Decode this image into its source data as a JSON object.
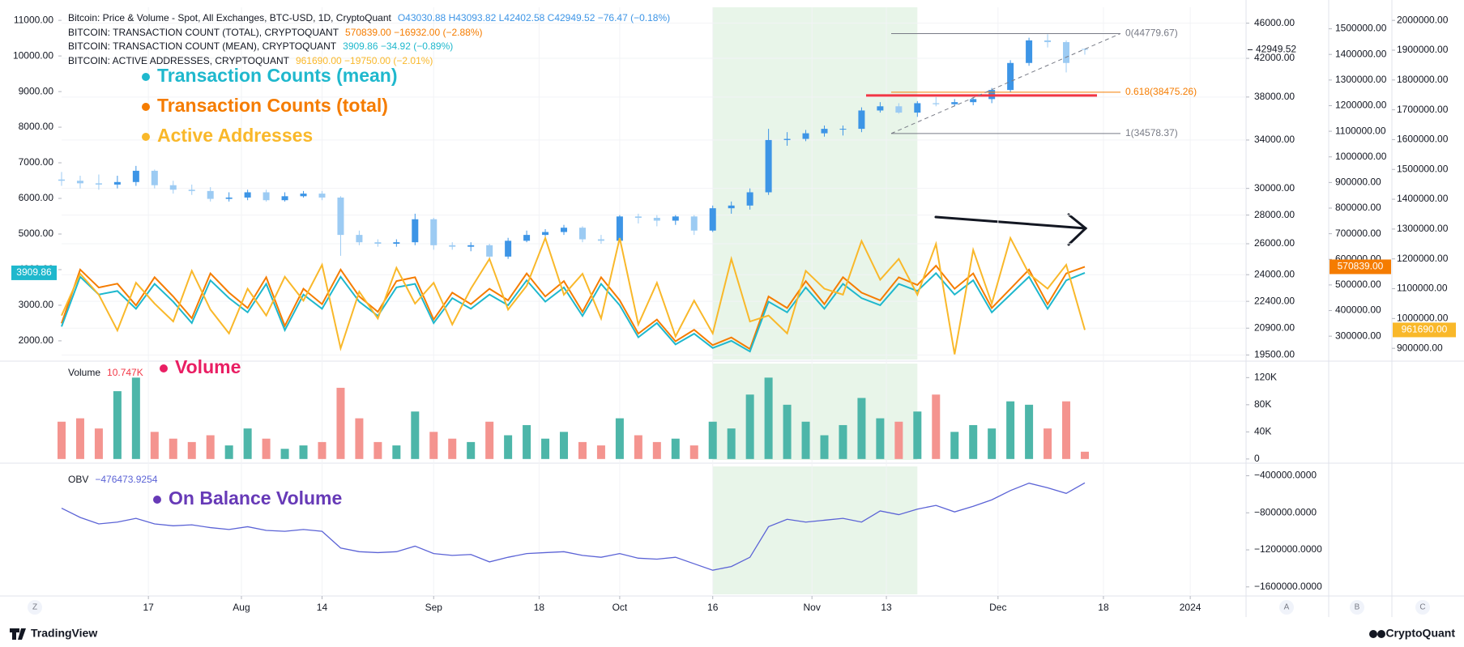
{
  "chart_data": [
    {
      "type": "candlestick",
      "title": "Bitcoin: Price & Volume - Spot, All Exchanges, BTC-USD, 1D, CryptoQuant",
      "ohlc_summary": "O43030.88 H43093.82 L42402.58 C42949.52 −76.47 (−0.18%)",
      "x": [
        0,
        3,
        6,
        9,
        12,
        15,
        18,
        21,
        24,
        27,
        30,
        33,
        36,
        39,
        42,
        45,
        48,
        51,
        54,
        57,
        60,
        63,
        66,
        69,
        72,
        75,
        78,
        81,
        84,
        87,
        90,
        93,
        96,
        99,
        102,
        105,
        108,
        111,
        114,
        117,
        120,
        123,
        126,
        129,
        132,
        135,
        138,
        141,
        144,
        147,
        150,
        153,
        156,
        159,
        162,
        165
      ],
      "xlim": [
        0,
        191
      ],
      "xticks": [
        {
          "value": 14,
          "label": "17"
        },
        {
          "value": 29,
          "label": "Aug"
        },
        {
          "value": 42,
          "label": "14"
        },
        {
          "value": 60,
          "label": "Sep"
        },
        {
          "value": 77,
          "label": "18"
        },
        {
          "value": 90,
          "label": "Oct"
        },
        {
          "value": 105,
          "label": "16"
        },
        {
          "value": 121,
          "label": "Nov"
        },
        {
          "value": 133,
          "label": "13"
        },
        {
          "value": 151,
          "label": "Dec"
        },
        {
          "value": 168,
          "label": "18"
        },
        {
          "value": 182,
          "label": "2024"
        }
      ],
      "open": [
        30700,
        30600,
        30400,
        30300,
        30500,
        31400,
        30250,
        29900,
        29800,
        29200,
        29300,
        29700,
        29100,
        29400,
        29600,
        29300,
        26600,
        26100,
        26000,
        26100,
        27700,
        25900,
        25800,
        25900,
        25150,
        26200,
        26600,
        26800,
        27100,
        26300,
        26200,
        27900,
        27800,
        27600,
        27900,
        26900,
        28500,
        28700,
        29700,
        34000,
        34100,
        34600,
        35000,
        35000,
        36700,
        37100,
        36500,
        37400,
        37300,
        37500,
        37800,
        38700,
        41500,
        44000,
        43800,
        43030.88
      ],
      "high": [
        31300,
        31000,
        31100,
        31000,
        31800,
        31500,
        30600,
        30300,
        30100,
        29700,
        29900,
        29900,
        29700,
        29800,
        29800,
        29400,
        26900,
        26300,
        26300,
        28100,
        27800,
        26100,
        26100,
        26000,
        26400,
        26900,
        27000,
        27300,
        27200,
        26600,
        28000,
        28100,
        28000,
        28000,
        28000,
        28700,
        29000,
        30000,
        35000,
        34700,
        34900,
        35300,
        35300,
        37000,
        37500,
        37400,
        37600,
        38000,
        37800,
        38000,
        38900,
        41800,
        44300,
        44700,
        44000,
        43093.82
      ],
      "low": [
        30200,
        30000,
        29900,
        30000,
        30200,
        30000,
        29600,
        29500,
        29000,
        29000,
        29100,
        29000,
        29000,
        29300,
        29100,
        25200,
        25900,
        25800,
        25800,
        25900,
        25600,
        25600,
        25500,
        24900,
        25000,
        26100,
        26400,
        26600,
        26100,
        26000,
        26100,
        27400,
        27200,
        27300,
        26600,
        26800,
        28100,
        28400,
        29500,
        33500,
        33900,
        34300,
        34400,
        34700,
        36500,
        36400,
        36100,
        37100,
        37100,
        37200,
        37400,
        38500,
        41200,
        43200,
        40500,
        42402.58
      ],
      "close": [
        30600,
        30400,
        30300,
        30500,
        31400,
        30250,
        29900,
        29800,
        29200,
        29300,
        29700,
        29100,
        29400,
        29600,
        29300,
        26600,
        26100,
        26000,
        26100,
        27700,
        25900,
        25800,
        25900,
        25150,
        26200,
        26600,
        26800,
        27100,
        26300,
        26200,
        27900,
        27800,
        27600,
        27900,
        26900,
        28500,
        28700,
        29700,
        34000,
        34100,
        34600,
        35000,
        35000,
        36700,
        37100,
        36500,
        37400,
        37300,
        37500,
        37800,
        38700,
        41500,
        44000,
        43800,
        41500,
        42949.52
      ],
      "color_up": "#3d95e6",
      "color_down": "#9ccbf3",
      "ylim": [
        19270,
        47930
      ],
      "log_scale": true,
      "grid": true,
      "yticks": [
        {
          "value": 46000,
          "label": "46000.00"
        },
        {
          "value": 42000,
          "label": "42000.00"
        },
        {
          "value": 38000,
          "label": "38000.00"
        },
        {
          "value": 34000,
          "label": "34000.00"
        },
        {
          "value": 30000,
          "label": "30000.00"
        },
        {
          "value": 28000,
          "label": "28000.00"
        },
        {
          "value": 26000,
          "label": "26000.00"
        },
        {
          "value": 24000,
          "label": "24000.00"
        },
        {
          "value": 22400,
          "label": "22400.00"
        },
        {
          "value": 20900,
          "label": "20900.00"
        },
        {
          "value": 19500,
          "label": "19500.00"
        }
      ],
      "y2lim": [
        1475,
        11367
      ],
      "y2ticks": [
        {
          "value": 11000,
          "label": "11000.00"
        },
        {
          "value": 10000,
          "label": "10000.00"
        },
        {
          "value": 9000,
          "label": "9000.00"
        },
        {
          "value": 8000,
          "label": "8000.00"
        },
        {
          "value": 7000,
          "label": "7000.00"
        },
        {
          "value": 6000,
          "label": "6000.00"
        },
        {
          "value": 5000,
          "label": "5000.00"
        },
        {
          "value": 4000,
          "label": "4000.00"
        },
        {
          "value": 3000,
          "label": "3000.00"
        },
        {
          "value": 2000,
          "label": "2000.00"
        }
      ],
      "y3lim": [
        208800,
        1584000
      ],
      "y3ticks": [
        {
          "value": 1500000,
          "label": "1500000.00"
        },
        {
          "value": 1400000,
          "label": "1400000.00"
        },
        {
          "value": 1300000,
          "label": "1300000.00"
        },
        {
          "value": 1200000,
          "label": "1200000.00"
        },
        {
          "value": 1100000,
          "label": "1100000.00"
        },
        {
          "value": 1000000,
          "label": "1000000.00"
        },
        {
          "value": 900000,
          "label": "900000.00"
        },
        {
          "value": 800000,
          "label": "800000.00"
        },
        {
          "value": 700000,
          "label": "700000.00"
        },
        {
          "value": 600000,
          "label": "600000.00"
        },
        {
          "value": 500000,
          "label": "500000.00"
        },
        {
          "value": 400000,
          "label": "400000.00"
        },
        {
          "value": 300000,
          "label": "300000.00"
        }
      ],
      "y4lim": [
        862400,
        2043900
      ],
      "y4ticks": [
        {
          "value": 2000000,
          "label": "2000000.00"
        },
        {
          "value": 1900000,
          "label": "1900000.00"
        },
        {
          "value": 1800000,
          "label": "1800000.00"
        },
        {
          "value": 1700000,
          "label": "1700000.00"
        },
        {
          "value": 1600000,
          "label": "1600000.00"
        },
        {
          "value": 1500000,
          "label": "1500000.00"
        },
        {
          "value": 1400000,
          "label": "1400000.00"
        },
        {
          "value": 1300000,
          "label": "1300000.00"
        },
        {
          "value": 1200000,
          "label": "1200000.00"
        },
        {
          "value": 1100000,
          "label": "1100000.00"
        },
        {
          "value": 1000000,
          "label": "1000000.00"
        },
        {
          "value": 900000,
          "label": "900000.00"
        }
      ],
      "highlight": [
        105,
        138
      ],
      "fib": [
        {
          "value": 44779.67,
          "label": "0(44779.67)"
        },
        {
          "value": 38475.26,
          "label": "0.618(38475.26)"
        },
        {
          "value": 34578.37,
          "label": "1(34578.37)"
        }
      ],
      "fib_colors": [
        "#787b86",
        "#f57c00",
        "#787b86"
      ],
      "series": [
        {
          "name": "BITCOIN: TRANSACTION COUNT (TOTAL), CRYPTOQUANT",
          "summary": "570839.00 −16932.00 (−2.88%)",
          "color": "#f57c00",
          "axis": "y3",
          "last_label": "570839.00",
          "values": [
            350000,
            560000,
            490000,
            505000,
            420000,
            530000,
            455000,
            370000,
            545000,
            470000,
            410000,
            530000,
            340000,
            485000,
            425000,
            560000,
            455000,
            395000,
            515000,
            530000,
            365000,
            470000,
            425000,
            485000,
            440000,
            545000,
            455000,
            515000,
            395000,
            530000,
            440000,
            310000,
            365000,
            280000,
            325000,
            265000,
            295000,
            250000,
            455000,
            410000,
            515000,
            425000,
            530000,
            470000,
            440000,
            530000,
            500000,
            575000,
            485000,
            545000,
            410000,
            485000,
            560000,
            425000,
            545000,
            570839
          ]
        },
        {
          "name": "BITCOIN: TRANSACTION COUNT (MEAN), CRYPTOQUANT",
          "summary": "3909.86 −34.92 (−0.89%)",
          "color": "#1fb8cd",
          "axis": "y2",
          "last_label": "3909.86",
          "values": [
            2400,
            3800,
            3300,
            3400,
            2900,
            3600,
            3100,
            2500,
            3700,
            3200,
            2800,
            3600,
            2300,
            3300,
            2900,
            3800,
            3100,
            2700,
            3500,
            3600,
            2500,
            3200,
            2900,
            3300,
            3000,
            3700,
            3100,
            3500,
            2700,
            3600,
            3000,
            2100,
            2500,
            1900,
            2200,
            1800,
            2000,
            1700,
            3100,
            2800,
            3500,
            2900,
            3600,
            3200,
            3000,
            3600,
            3400,
            3900,
            3300,
            3700,
            2800,
            3300,
            3800,
            2900,
            3700,
            3909.86
          ]
        },
        {
          "name": "BITCOIN: ACTIVE ADDRESSES, CRYPTOQUANT",
          "summary": "961690.00 −19750.00 (−2.01%)",
          "color": "#f9b82a",
          "axis": "y4",
          "last_label": "961690.00",
          "values": [
            1010000,
            1150000,
            1080000,
            960000,
            1120000,
            1050000,
            990000,
            1160000,
            1030000,
            950000,
            1100000,
            1010000,
            1140000,
            1060000,
            1180000,
            900000,
            1090000,
            1000000,
            1170000,
            1050000,
            1120000,
            980000,
            1100000,
            1200000,
            1030000,
            1110000,
            1270000,
            1080000,
            1150000,
            1000000,
            1270000,
            980000,
            1120000,
            940000,
            1060000,
            950000,
            1200000,
            990000,
            1010000,
            950000,
            1160000,
            1100000,
            1080000,
            1260000,
            1130000,
            1200000,
            1080000,
            1250000,
            880000,
            1230000,
            1050000,
            1270000,
            1150000,
            1100000,
            1180000,
            961690
          ]
        }
      ],
      "annotations": [
        {
          "text": "Transaction Counts (mean)",
          "color": "#1fb8cd"
        },
        {
          "text": "Transaction Counts (total)",
          "color": "#f57c00"
        },
        {
          "text": "Active Addresses",
          "color": "#f9b82a"
        }
      ]
    },
    {
      "type": "bar",
      "name": "Volume",
      "last_label": "10.747K",
      "values": [
        55000,
        60000,
        45000,
        100000,
        120000,
        40000,
        30000,
        25000,
        35000,
        20000,
        45000,
        30000,
        15000,
        20000,
        25000,
        105000,
        60000,
        25000,
        20000,
        70000,
        40000,
        30000,
        25000,
        55000,
        35000,
        50000,
        30000,
        40000,
        25000,
        20000,
        60000,
        35000,
        25000,
        30000,
        20000,
        55000,
        45000,
        95000,
        120000,
        80000,
        55000,
        35000,
        50000,
        90000,
        60000,
        55000,
        70000,
        95000,
        40000,
        50000,
        45000,
        85000,
        80000,
        45000,
        85000,
        10747
      ],
      "color_up": "#4db6a9",
      "color_down": "#f4948f",
      "label_color": "#f23645",
      "ylim": [
        -1400,
        140700
      ],
      "yticks": [
        0,
        {
          "value": 40000,
          "label": "40K"
        },
        {
          "value": 80000,
          "label": "80K"
        },
        {
          "value": 120000,
          "label": "120K"
        }
      ],
      "annotation": {
        "text": "Volume",
        "color": "#e91e63"
      }
    },
    {
      "type": "line",
      "name": "OBV",
      "last_label": "−476473.9254",
      "color": "#5b63d6",
      "values": [
        -750000,
        -850000,
        -920000,
        -900000,
        -860000,
        -920000,
        -940000,
        -930000,
        -960000,
        -980000,
        -950000,
        -990000,
        -1000000,
        -980000,
        -1000000,
        -1180000,
        -1220000,
        -1230000,
        -1220000,
        -1160000,
        -1240000,
        -1260000,
        -1250000,
        -1330000,
        -1280000,
        -1240000,
        -1230000,
        -1220000,
        -1260000,
        -1280000,
        -1240000,
        -1290000,
        -1300000,
        -1280000,
        -1350000,
        -1420000,
        -1380000,
        -1280000,
        -950000,
        -870000,
        -900000,
        -880000,
        -860000,
        -900000,
        -780000,
        -820000,
        -760000,
        -720000,
        -790000,
        -730000,
        -660000,
        -560000,
        -480000,
        -530000,
        -590000,
        -476473.9254
      ],
      "ylim": [
        -1680600,
        -299240
      ],
      "yticks": [
        {
          "value": -400000,
          "label": "−400000.0000"
        },
        {
          "value": -800000,
          "label": "−800000.0000"
        },
        {
          "value": -1200000,
          "label": "−1200000.0000"
        },
        {
          "value": -1600000,
          "label": "−1600000.0000"
        }
      ],
      "annotation": {
        "text": "On Balance Volume",
        "color": "#673ab7"
      }
    }
  ],
  "ui": {
    "buttons": [
      "Z",
      "A",
      "B",
      "C"
    ]
  },
  "footer": {
    "left": "TradingView",
    "right": "CryptoQuant"
  }
}
